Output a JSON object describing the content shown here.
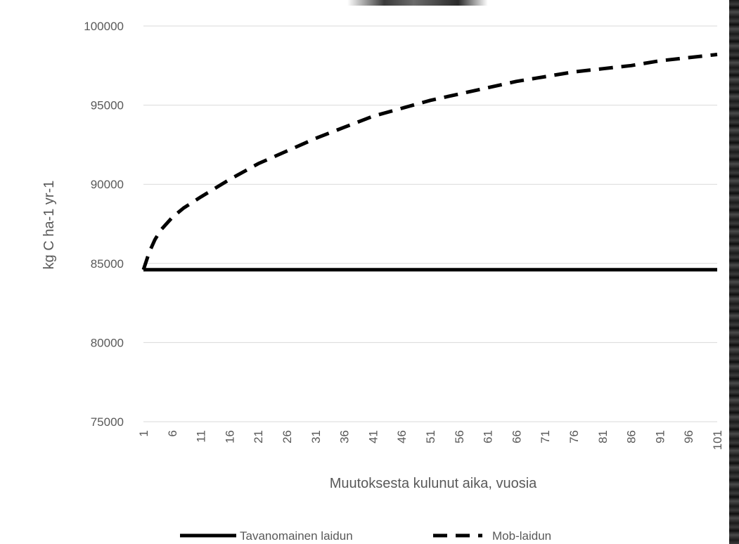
{
  "chart_data": {
    "type": "line",
    "title": "",
    "xlabel": "Muutoksesta kulunut aika, vuosia",
    "ylabel": "kg C ha-1 yr-1",
    "ylim": [
      75000,
      100000
    ],
    "yticks": [
      75000,
      80000,
      85000,
      90000,
      95000,
      100000
    ],
    "xlim": [
      1,
      101
    ],
    "xticks": [
      1,
      6,
      11,
      16,
      21,
      26,
      31,
      36,
      41,
      46,
      51,
      56,
      61,
      66,
      71,
      76,
      81,
      86,
      91,
      96,
      101
    ],
    "grid": "horizontal",
    "legend_position": "bottom",
    "series": [
      {
        "name": "Tavanomainen laidun",
        "style": "solid",
        "color": "#000000",
        "x": [
          1,
          101
        ],
        "y": [
          84600,
          84600
        ]
      },
      {
        "name": "Mob-laidun",
        "style": "dashed",
        "color": "#000000",
        "x": [
          1,
          2,
          3,
          4,
          6,
          8,
          11,
          16,
          21,
          26,
          31,
          36,
          41,
          46,
          51,
          56,
          61,
          66,
          71,
          76,
          81,
          86,
          91,
          96,
          101
        ],
        "y": [
          84600,
          85700,
          86500,
          87100,
          87900,
          88500,
          89200,
          90300,
          91300,
          92100,
          92900,
          93600,
          94300,
          94800,
          95300,
          95700,
          96100,
          96500,
          96800,
          97100,
          97300,
          97500,
          97800,
          98000,
          98200
        ]
      }
    ]
  }
}
